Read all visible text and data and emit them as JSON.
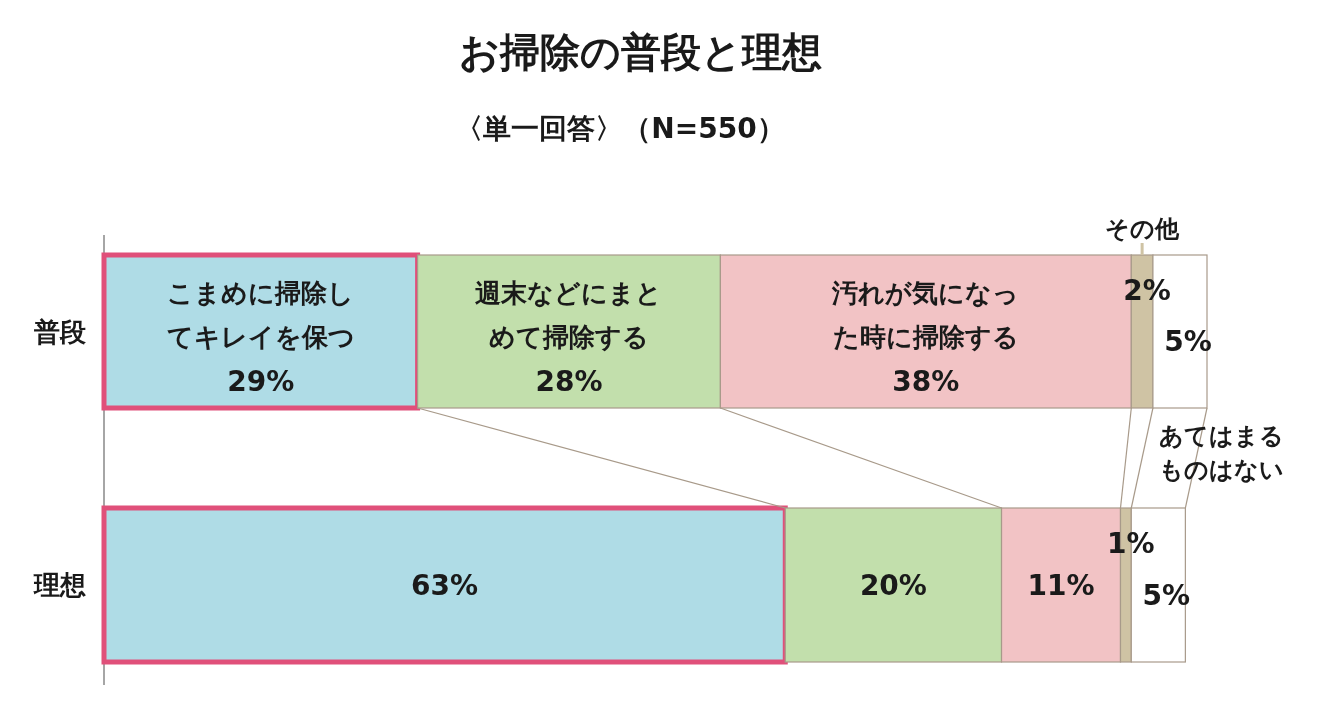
{
  "chart_data": {
    "type": "bar",
    "orientation": "horizontal",
    "stacked": true,
    "title": "お掃除の普段と理想",
    "subtitle": "〈単一回答〉（N=550）",
    "categories": [
      "普段",
      "理想"
    ],
    "legend": false,
    "series": [
      {
        "name": "こまめに掃除してキレイを保つ",
        "color": "#afdce6",
        "values": [
          29,
          63
        ],
        "value_labels": [
          "29%",
          "63%"
        ]
      },
      {
        "name": "週末などにまとめて掃除する",
        "color": "#c2dfac",
        "values": [
          28,
          20
        ],
        "value_labels": [
          "28%",
          "20%"
        ]
      },
      {
        "name": "汚れが気になった時に掃除する",
        "color": "#f2c3c5",
        "values": [
          38,
          11
        ],
        "value_labels": [
          "38%",
          "11%"
        ]
      },
      {
        "name": "その他",
        "color": "#cfc3a4",
        "values": [
          2,
          1
        ],
        "value_labels": [
          "2%",
          "1%"
        ]
      },
      {
        "name": "あてはまるものはない",
        "color": "#ffffff",
        "values": [
          5,
          5
        ],
        "value_labels": [
          "5%",
          "5%"
        ]
      }
    ]
  }
}
